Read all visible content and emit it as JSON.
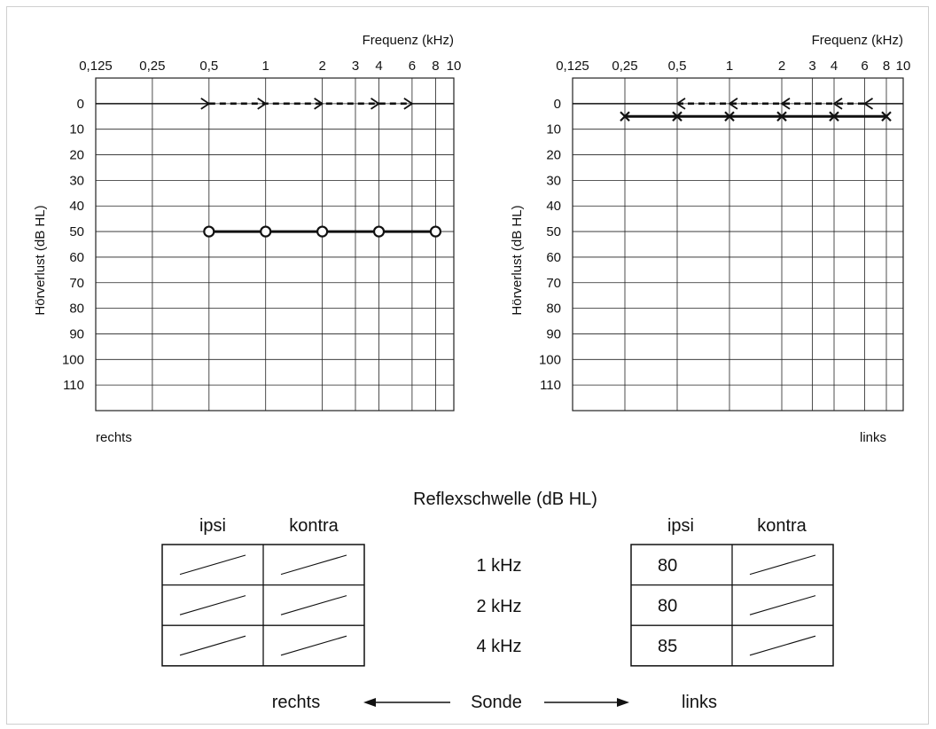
{
  "chart_data": [
    {
      "type": "line",
      "side_label": "rechts",
      "xlabel": "Frequenz (kHz)",
      "ylabel": "Hörverlust (dB HL)",
      "x_ticks": [
        "0,125",
        "0,25",
        "0,5",
        "1",
        "2",
        "3",
        "4",
        "6",
        "8",
        "10"
      ],
      "x_tick_values": [
        0.125,
        0.25,
        0.5,
        1,
        2,
        3,
        4,
        6,
        8,
        10
      ],
      "y_ticks": [
        "0",
        "10",
        "20",
        "30",
        "40",
        "50",
        "60",
        "70",
        "80",
        "90",
        "100",
        "110"
      ],
      "ylim": [
        -10,
        120
      ],
      "x_scale": "log",
      "grid": true,
      "series": [
        {
          "marker": "circle",
          "style": "solid",
          "x": [
            0.5,
            1,
            2,
            4,
            8
          ],
          "y": [
            50,
            50,
            50,
            50,
            50
          ]
        },
        {
          "marker": "arrow-right",
          "style": "dashed",
          "x": [
            0.5,
            1,
            2,
            4,
            6
          ],
          "y": [
            0,
            0,
            0,
            0,
            0
          ]
        }
      ]
    },
    {
      "type": "line",
      "side_label": "links",
      "xlabel": "Frequenz (kHz)",
      "ylabel": "Hörverlust (dB HL)",
      "x_ticks": [
        "0,125",
        "0,25",
        "0,5",
        "1",
        "2",
        "3",
        "4",
        "6",
        "8",
        "10"
      ],
      "x_tick_values": [
        0.125,
        0.25,
        0.5,
        1,
        2,
        3,
        4,
        6,
        8,
        10
      ],
      "y_ticks": [
        "0",
        "10",
        "20",
        "30",
        "40",
        "50",
        "60",
        "70",
        "80",
        "90",
        "100",
        "110"
      ],
      "ylim": [
        -10,
        120
      ],
      "x_scale": "log",
      "grid": true,
      "series": [
        {
          "marker": "cross",
          "style": "solid",
          "x": [
            0.25,
            0.5,
            1,
            2,
            4,
            8
          ],
          "y": [
            5,
            5,
            5,
            5,
            5,
            5
          ]
        },
        {
          "marker": "arrow-left",
          "style": "dashed",
          "x": [
            0.5,
            1,
            2,
            4,
            6
          ],
          "y": [
            0,
            0,
            0,
            0,
            0
          ]
        }
      ]
    }
  ],
  "reflex": {
    "title": "Reflexschwelle (dB HL)",
    "col_ipsi": "ipsi",
    "col_kontra": "kontra",
    "frequencies": [
      "1 kHz",
      "2 kHz",
      "4 kHz"
    ],
    "right": {
      "ipsi": [
        null,
        null,
        null
      ],
      "kontra": [
        null,
        null,
        null
      ]
    },
    "left": {
      "ipsi": [
        "80",
        "80",
        "85"
      ],
      "kontra": [
        null,
        null,
        null
      ]
    },
    "probe_label": "Sonde",
    "probe_right": "rechts",
    "probe_left": "links"
  },
  "colors": {
    "line": "#111111",
    "grid": "#222222",
    "frame": "#cfcfcf"
  }
}
